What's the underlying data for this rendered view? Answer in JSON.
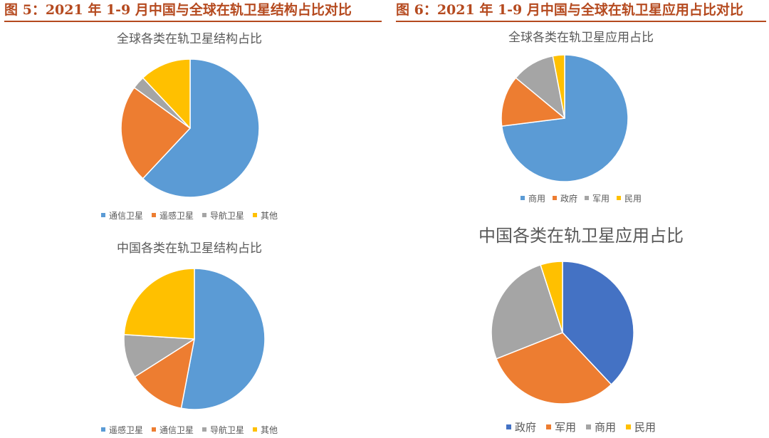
{
  "header": {
    "left_title": "图 5：2021 年 1-9 月中国与全球在轨卫星结构占比对比",
    "right_title": "图 6：2021 年 1-9 月中国与全球在轨卫星应用占比对比",
    "accent_color": "#b54a1f"
  },
  "chart_data": [
    {
      "type": "pie",
      "title": "全球各类在轨卫星结构占比",
      "categories": [
        "通信卫星",
        "遥感卫星",
        "导航卫星",
        "其他"
      ],
      "values": [
        62,
        23,
        3,
        12
      ],
      "colors": [
        "#5b9bd5",
        "#ed7d31",
        "#a5a5a5",
        "#ffc000"
      ],
      "legend_position": "bottom"
    },
    {
      "type": "pie",
      "title": "中国各类在轨卫星结构占比",
      "categories": [
        "遥感卫星",
        "通信卫星",
        "导航卫星",
        "其他"
      ],
      "values": [
        53,
        13,
        10,
        24
      ],
      "colors": [
        "#5b9bd5",
        "#ed7d31",
        "#a5a5a5",
        "#ffc000"
      ],
      "legend_position": "bottom"
    },
    {
      "type": "pie",
      "title": "全球各类在轨卫星应用占比",
      "categories": [
        "商用",
        "政府",
        "军用",
        "民用"
      ],
      "values": [
        73,
        13,
        11,
        3
      ],
      "colors": [
        "#5b9bd5",
        "#ed7d31",
        "#a5a5a5",
        "#ffc000"
      ],
      "legend_position": "bottom"
    },
    {
      "type": "pie",
      "title": "中国各类在轨卫星应用占比",
      "categories": [
        "政府",
        "军用",
        "商用",
        "民用"
      ],
      "values": [
        38,
        31,
        26,
        5
      ],
      "colors": [
        "#4472c4",
        "#ed7d31",
        "#a5a5a5",
        "#ffc000"
      ],
      "legend_position": "bottom"
    }
  ]
}
